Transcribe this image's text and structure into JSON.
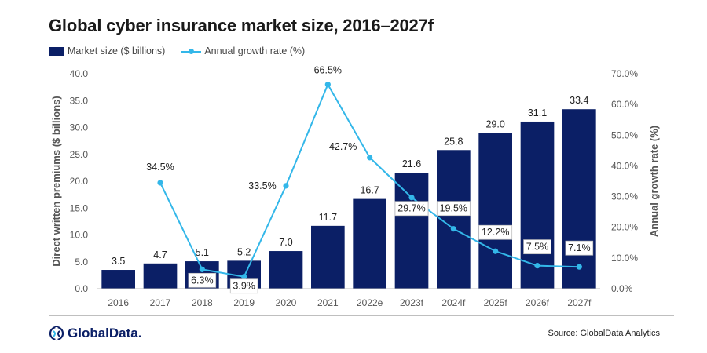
{
  "chart_data": {
    "type": "bar",
    "title": "Global cyber insurance market size, 2016–2027f",
    "categories": [
      "2016",
      "2017",
      "2018",
      "2019",
      "2020",
      "2021",
      "2022e",
      "2023f",
      "2024f",
      "2025f",
      "2026f",
      "2027f"
    ],
    "series": [
      {
        "name": "Market size ($ billions)",
        "type": "bar",
        "axis": "left",
        "color": "#0b1f66",
        "values": [
          3.5,
          4.7,
          5.1,
          5.2,
          7.0,
          11.7,
          16.7,
          21.6,
          25.8,
          29.0,
          31.1,
          33.4
        ],
        "labels": [
          "3.5",
          "4.7",
          "5.1",
          "5.2",
          "7.0",
          "11.7",
          "16.7",
          "21.6",
          "25.8",
          "29.0",
          "31.1",
          "33.4"
        ]
      },
      {
        "name": "Annual growth rate (%)",
        "type": "line",
        "axis": "right",
        "color": "#33b7e9",
        "values": [
          null,
          34.5,
          6.3,
          3.9,
          33.5,
          66.5,
          42.7,
          29.7,
          19.5,
          12.2,
          7.5,
          7.1
        ],
        "labels": [
          null,
          "34.5%",
          "6.3%",
          "3.9%",
          "33.5%",
          "66.5%",
          "42.7%",
          "29.7%",
          "19.5%",
          "12.2%",
          "7.5%",
          "7.1%"
        ]
      }
    ],
    "ylabel": "Direct written premiums ($ billions)",
    "y2label": "Annual growth rate (%)",
    "ylim": [
      0,
      40
    ],
    "y2lim": [
      0,
      70
    ],
    "yticks": [
      "0.0",
      "5.0",
      "10.0",
      "15.0",
      "20.0",
      "25.0",
      "30.0",
      "35.0",
      "40.0"
    ],
    "y2ticks": [
      "0.0%",
      "10.0%",
      "20.0%",
      "30.0%",
      "40.0%",
      "50.0%",
      "60.0%",
      "70.0%"
    ],
    "grid": false,
    "legend_position": "top-left"
  },
  "footer": {
    "brand": "GlobalData.",
    "source": "Source: GlobalData Analytics"
  }
}
